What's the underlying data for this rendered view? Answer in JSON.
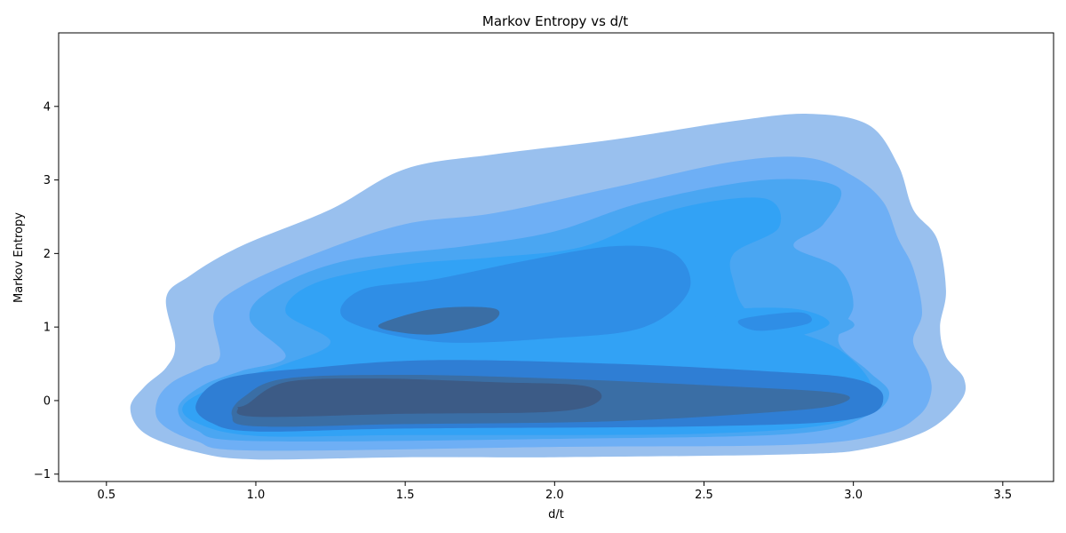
{
  "chart_data": {
    "type": "contour",
    "title": "Markov Entropy vs d/t",
    "xlabel": "d/t",
    "ylabel": "Markov Entropy",
    "xlim": [
      0.34,
      3.67
    ],
    "ylim": [
      -1.1,
      5.0
    ],
    "xticks": [
      0.5,
      1.0,
      1.5,
      2.0,
      2.5,
      3.0,
      3.5
    ],
    "yticks": [
      -1,
      0,
      1,
      2,
      3,
      4
    ],
    "xtick_labels": [
      "0.5",
      "1.0",
      "1.5",
      "2.0",
      "2.5",
      "3.0",
      "3.5"
    ],
    "ytick_labels": [
      "−1",
      "0",
      "1",
      "2",
      "3",
      "4"
    ],
    "grid": false,
    "levels": [
      {
        "color": "#99c0ee",
        "polygons": [
          [
            [
              0.73,
              0.75
            ],
            [
              0.7,
              1.4
            ],
            [
              0.78,
              1.7
            ],
            [
              0.95,
              2.1
            ],
            [
              1.25,
              2.6
            ],
            [
              1.5,
              3.15
            ],
            [
              1.8,
              3.35
            ],
            [
              2.2,
              3.55
            ],
            [
              2.6,
              3.8
            ],
            [
              2.85,
              3.9
            ],
            [
              3.05,
              3.75
            ],
            [
              3.15,
              3.2
            ],
            [
              3.2,
              2.6
            ],
            [
              3.28,
              2.2
            ],
            [
              3.31,
              1.5
            ],
            [
              3.29,
              1.0
            ],
            [
              3.31,
              0.6
            ],
            [
              3.37,
              0.3
            ],
            [
              3.36,
              0.0
            ],
            [
              3.25,
              -0.4
            ],
            [
              3.05,
              -0.65
            ],
            [
              2.8,
              -0.73
            ],
            [
              2.0,
              -0.77
            ],
            [
              1.5,
              -0.77
            ],
            [
              1.0,
              -0.8
            ],
            [
              0.8,
              -0.7
            ],
            [
              0.63,
              -0.45
            ],
            [
              0.58,
              -0.1
            ],
            [
              0.63,
              0.2
            ],
            [
              0.7,
              0.45
            ]
          ]
        ]
      },
      {
        "color": "#6eaff5",
        "polygons": [
          [
            [
              0.88,
              0.6
            ],
            [
              0.86,
              1.2
            ],
            [
              0.95,
              1.55
            ],
            [
              1.2,
              2.0
            ],
            [
              1.5,
              2.4
            ],
            [
              1.8,
              2.55
            ],
            [
              2.2,
              2.9
            ],
            [
              2.6,
              3.25
            ],
            [
              2.85,
              3.3
            ],
            [
              3.0,
              3.05
            ],
            [
              3.1,
              2.7
            ],
            [
              3.15,
              2.2
            ],
            [
              3.2,
              1.8
            ],
            [
              3.23,
              1.2
            ],
            [
              3.2,
              0.8
            ],
            [
              3.25,
              0.4
            ],
            [
              3.26,
              0.1
            ],
            [
              3.22,
              -0.2
            ],
            [
              3.1,
              -0.45
            ],
            [
              2.8,
              -0.6
            ],
            [
              2.0,
              -0.63
            ],
            [
              1.0,
              -0.68
            ],
            [
              0.8,
              -0.55
            ],
            [
              0.68,
              -0.3
            ],
            [
              0.67,
              0.0
            ],
            [
              0.72,
              0.25
            ],
            [
              0.82,
              0.45
            ]
          ]
        ]
      },
      {
        "color": "#4aa6f2",
        "polygons": [
          [
            [
              1.1,
              0.6
            ],
            [
              0.98,
              1.1
            ],
            [
              1.05,
              1.5
            ],
            [
              1.3,
              1.9
            ],
            [
              1.7,
              2.1
            ],
            [
              2.0,
              2.3
            ],
            [
              2.3,
              2.7
            ],
            [
              2.7,
              3.0
            ],
            [
              2.95,
              2.9
            ],
            [
              2.9,
              2.4
            ],
            [
              2.8,
              2.1
            ],
            [
              2.95,
              1.8
            ],
            [
              3.0,
              1.3
            ],
            [
              2.95,
              0.8
            ],
            [
              3.05,
              0.4
            ],
            [
              3.12,
              0.1
            ],
            [
              3.05,
              -0.2
            ],
            [
              2.8,
              -0.45
            ],
            [
              2.0,
              -0.52
            ],
            [
              1.0,
              -0.55
            ],
            [
              0.8,
              -0.4
            ],
            [
              0.74,
              -0.1
            ],
            [
              0.82,
              0.2
            ],
            [
              0.95,
              0.4
            ]
          ],
          [
            [
              2.6,
              1.25
            ],
            [
              2.9,
              1.2
            ],
            [
              3.0,
              1.0
            ],
            [
              2.8,
              0.75
            ],
            [
              2.6,
              0.78
            ]
          ]
        ]
      },
      {
        "color": "#32a2f5",
        "polygons": [
          [
            [
              1.25,
              0.8
            ],
            [
              1.1,
              1.2
            ],
            [
              1.2,
              1.6
            ],
            [
              1.5,
              1.85
            ],
            [
              1.8,
              1.95
            ],
            [
              2.1,
              2.1
            ],
            [
              2.4,
              2.6
            ],
            [
              2.7,
              2.75
            ],
            [
              2.75,
              2.35
            ],
            [
              2.6,
              2.0
            ],
            [
              2.6,
              1.6
            ],
            [
              2.65,
              1.2
            ],
            [
              2.8,
              0.95
            ],
            [
              2.95,
              0.7
            ],
            [
              3.05,
              0.3
            ],
            [
              3.05,
              0.0
            ],
            [
              2.95,
              -0.3
            ],
            [
              2.5,
              -0.45
            ],
            [
              1.5,
              -0.47
            ],
            [
              1.0,
              -0.48
            ],
            [
              0.8,
              -0.3
            ],
            [
              0.76,
              -0.05
            ],
            [
              0.9,
              0.25
            ],
            [
              1.1,
              0.5
            ]
          ],
          [
            [
              2.55,
              1.2
            ],
            [
              2.8,
              1.25
            ],
            [
              2.92,
              1.05
            ],
            [
              2.78,
              0.85
            ],
            [
              2.6,
              0.85
            ]
          ]
        ]
      },
      {
        "color": "#2f8ee6",
        "polygons": [
          [
            [
              1.6,
              0.8
            ],
            [
              1.3,
              1.1
            ],
            [
              1.35,
              1.5
            ],
            [
              1.6,
              1.65
            ],
            [
              1.9,
              1.9
            ],
            [
              2.2,
              2.1
            ],
            [
              2.4,
              2.0
            ],
            [
              2.45,
              1.5
            ],
            [
              2.3,
              1.0
            ],
            [
              2.0,
              0.85
            ]
          ],
          [
            [
              2.62,
              1.1
            ],
            [
              2.82,
              1.2
            ],
            [
              2.85,
              1.05
            ],
            [
              2.68,
              0.95
            ]
          ]
        ]
      },
      {
        "color": "#2f7ed4",
        "polygons": [
          [
            [
              0.8,
              -0.05
            ],
            [
              0.9,
              0.3
            ],
            [
              1.2,
              0.45
            ],
            [
              1.6,
              0.55
            ],
            [
              2.2,
              0.5
            ],
            [
              2.7,
              0.4
            ],
            [
              3.0,
              0.3
            ],
            [
              3.1,
              0.05
            ],
            [
              3.0,
              -0.25
            ],
            [
              2.5,
              -0.35
            ],
            [
              1.5,
              -0.38
            ],
            [
              1.0,
              -0.42
            ],
            [
              0.85,
              -0.3
            ]
          ]
        ]
      },
      {
        "color": "#3a6ea5",
        "polygons": [
          [
            [
              1.42,
              1.05
            ],
            [
              1.6,
              1.25
            ],
            [
              1.8,
              1.25
            ],
            [
              1.78,
              1.05
            ],
            [
              1.6,
              0.9
            ],
            [
              1.45,
              0.95
            ]
          ],
          [
            [
              0.96,
              0.05
            ],
            [
              1.1,
              0.3
            ],
            [
              1.5,
              0.35
            ],
            [
              2.0,
              0.3
            ],
            [
              2.55,
              0.2
            ],
            [
              2.95,
              0.1
            ],
            [
              2.95,
              -0.05
            ],
            [
              2.75,
              -0.15
            ],
            [
              2.2,
              -0.28
            ],
            [
              1.5,
              -0.32
            ],
            [
              1.0,
              -0.35
            ],
            [
              0.92,
              -0.2
            ]
          ]
        ]
      },
      {
        "color": "#3c5b86",
        "polygons": [
          [
            [
              0.97,
              -0.05
            ],
            [
              1.1,
              0.25
            ],
            [
              1.4,
              0.3
            ],
            [
              1.8,
              0.25
            ],
            [
              2.1,
              0.2
            ],
            [
              2.15,
              0.0
            ],
            [
              2.0,
              -0.15
            ],
            [
              1.5,
              -0.18
            ],
            [
              1.0,
              -0.22
            ],
            [
              0.94,
              -0.1
            ]
          ]
        ]
      }
    ]
  }
}
